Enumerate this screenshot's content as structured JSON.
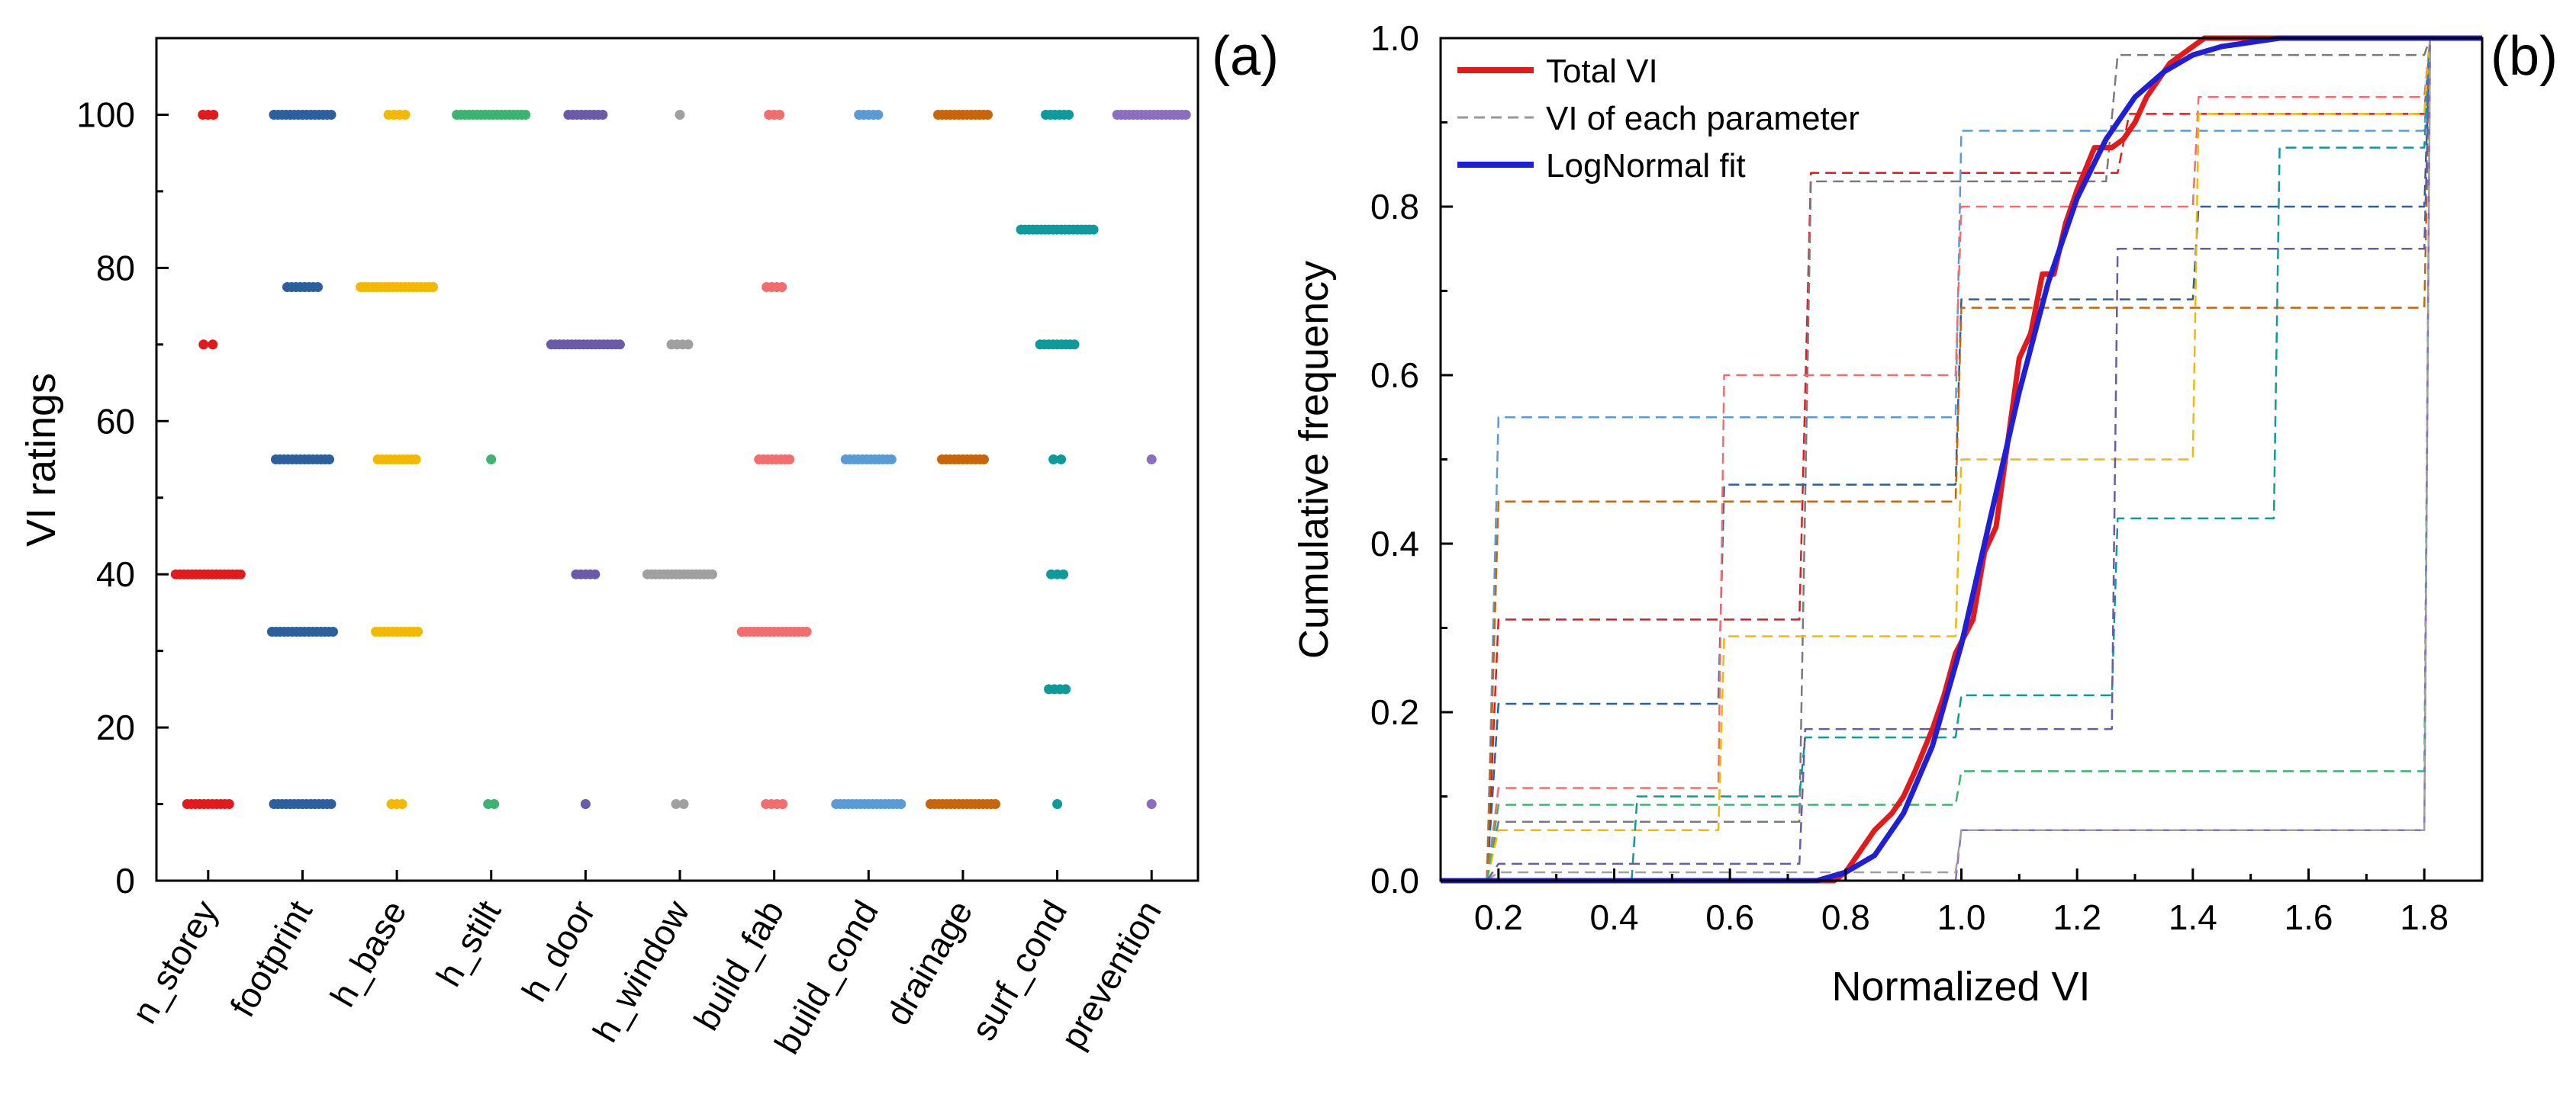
{
  "chart_data": [
    {
      "type": "scatter",
      "panel_label": "(a)",
      "ylabel": "VI ratings",
      "xlabel": "",
      "ylim": [
        0,
        110
      ],
      "yticks": [
        "0",
        "20",
        "40",
        "60",
        "80",
        "100"
      ],
      "categories": [
        "n_storey",
        "footprint",
        "h_base",
        "h_stilt",
        "h_door",
        "h_window",
        "build_fab",
        "build_cond",
        "drainage",
        "surf_cond",
        "prevention"
      ],
      "points": [
        {
          "category": "n_storey",
          "values": [
            10,
            40,
            70,
            100
          ],
          "color": "#e31a1c"
        },
        {
          "category": "footprint",
          "values": [
            10,
            32.5,
            55,
            77.5,
            100
          ],
          "color": "#2c5f9e"
        },
        {
          "category": "h_base",
          "values": [
            10,
            32.5,
            55,
            77.5,
            100
          ],
          "color": "#f5b800"
        },
        {
          "category": "h_stilt",
          "values": [
            10,
            55,
            100
          ],
          "color": "#3cb371"
        },
        {
          "category": "h_door",
          "values": [
            10,
            40,
            70,
            100
          ],
          "color": "#6a5aa8"
        },
        {
          "category": "h_window",
          "values": [
            10,
            40,
            70,
            100
          ],
          "color": "#a0a0a0"
        },
        {
          "category": "build_fab",
          "values": [
            10,
            32.5,
            55,
            77.5,
            100
          ],
          "color": "#f26d6d"
        },
        {
          "category": "build_cond",
          "values": [
            10,
            55,
            100
          ],
          "color": "#5b9bd5"
        },
        {
          "category": "drainage",
          "values": [
            10,
            55,
            100
          ],
          "color": "#c8640a"
        },
        {
          "category": "surf_cond",
          "values": [
            10,
            25,
            40,
            55,
            70,
            85,
            100
          ],
          "color": "#0e9a9a"
        },
        {
          "category": "prevention",
          "values": [
            10,
            55,
            100
          ],
          "color": "#8a6ec0"
        }
      ]
    },
    {
      "type": "line",
      "panel_label": "(b)",
      "xlabel": "Normalized VI",
      "ylabel": "Cumulative frequency",
      "xlim": [
        0.1,
        1.9
      ],
      "ylim": [
        0,
        1.0
      ],
      "xticks": [
        "0.2",
        "0.4",
        "0.6",
        "0.8",
        "1.0",
        "1.2",
        "1.4",
        "1.6",
        "1.8"
      ],
      "yticks": [
        "0.0",
        "0.2",
        "0.4",
        "0.6",
        "0.8",
        "1.0"
      ],
      "legend_position": "top-left",
      "legend": [
        {
          "label": "Total VI",
          "color": "#e31a1c",
          "style": "solid"
        },
        {
          "label": "VI of each parameter",
          "color": "#999999",
          "style": "dashed"
        },
        {
          "label": "LogNormal fit",
          "color": "#1f1fd6",
          "style": "solid"
        }
      ],
      "series": [
        {
          "color": "#e31a1c",
          "style": "solid",
          "points": [
            [
              0.1,
              0
            ],
            [
              0.78,
              0
            ],
            [
              0.8,
              0.01
            ],
            [
              0.82,
              0.03
            ],
            [
              0.85,
              0.06
            ],
            [
              0.88,
              0.08
            ],
            [
              0.9,
              0.1
            ],
            [
              0.92,
              0.13
            ],
            [
              0.95,
              0.18
            ],
            [
              0.97,
              0.22
            ],
            [
              0.99,
              0.27
            ],
            [
              1.02,
              0.31
            ],
            [
              1.04,
              0.39
            ],
            [
              1.06,
              0.42
            ],
            [
              1.08,
              0.52
            ],
            [
              1.1,
              0.62
            ],
            [
              1.12,
              0.65
            ],
            [
              1.14,
              0.72
            ],
            [
              1.16,
              0.72
            ],
            [
              1.18,
              0.78
            ],
            [
              1.2,
              0.82
            ],
            [
              1.23,
              0.87
            ],
            [
              1.26,
              0.87
            ],
            [
              1.28,
              0.88
            ],
            [
              1.3,
              0.9
            ],
            [
              1.32,
              0.93
            ],
            [
              1.34,
              0.95
            ],
            [
              1.36,
              0.97
            ],
            [
              1.4,
              0.99
            ],
            [
              1.42,
              1.0
            ],
            [
              1.9,
              1.0
            ]
          ]
        },
        {
          "color": "#1f1fd6",
          "style": "solid",
          "points": [
            [
              0.1,
              0
            ],
            [
              0.75,
              0
            ],
            [
              0.8,
              0.01
            ],
            [
              0.85,
              0.03
            ],
            [
              0.9,
              0.08
            ],
            [
              0.95,
              0.16
            ],
            [
              1.0,
              0.28
            ],
            [
              1.05,
              0.43
            ],
            [
              1.1,
              0.58
            ],
            [
              1.15,
              0.71
            ],
            [
              1.2,
              0.81
            ],
            [
              1.25,
              0.88
            ],
            [
              1.3,
              0.93
            ],
            [
              1.35,
              0.96
            ],
            [
              1.4,
              0.98
            ],
            [
              1.45,
              0.99
            ],
            [
              1.55,
              1.0
            ],
            [
              1.9,
              1.0
            ]
          ]
        },
        {
          "color": "#e31a1c",
          "style": "dashed",
          "points": [
            [
              0.18,
              0
            ],
            [
              0.2,
              0.31
            ],
            [
              0.72,
              0.31
            ],
            [
              0.74,
              0.84
            ],
            [
              1.27,
              0.84
            ],
            [
              1.29,
              0.91
            ],
            [
              1.8,
              0.91
            ],
            [
              1.81,
              1.0
            ],
            [
              1.9,
              1.0
            ]
          ]
        },
        {
          "color": "#7a7a7a",
          "style": "dashed",
          "points": [
            [
              0.18,
              0
            ],
            [
              0.2,
              0.07
            ],
            [
              0.72,
              0.07
            ],
            [
              0.74,
              0.83
            ],
            [
              1.25,
              0.83
            ],
            [
              1.27,
              0.98
            ],
            [
              1.8,
              0.98
            ],
            [
              1.81,
              1.0
            ]
          ]
        },
        {
          "color": "#5b9bd5",
          "style": "dashed",
          "points": [
            [
              0.18,
              0
            ],
            [
              0.2,
              0.55
            ],
            [
              0.99,
              0.55
            ],
            [
              1.0,
              0.89
            ],
            [
              1.8,
              0.89
            ],
            [
              1.81,
              1.0
            ]
          ]
        },
        {
          "color": "#2c5f9e",
          "style": "dashed",
          "points": [
            [
              0.18,
              0
            ],
            [
              0.2,
              0.21
            ],
            [
              0.58,
              0.21
            ],
            [
              0.59,
              0.47
            ],
            [
              0.99,
              0.47
            ],
            [
              1.0,
              0.69
            ],
            [
              1.4,
              0.69
            ],
            [
              1.41,
              0.8
            ],
            [
              1.8,
              0.8
            ],
            [
              1.81,
              1.0
            ]
          ]
        },
        {
          "color": "#c8640a",
          "style": "dashed",
          "points": [
            [
              0.18,
              0
            ],
            [
              0.2,
              0.45
            ],
            [
              0.99,
              0.45
            ],
            [
              1.0,
              0.68
            ],
            [
              1.8,
              0.68
            ],
            [
              1.81,
              1.0
            ]
          ]
        },
        {
          "color": "#f26d6d",
          "style": "dashed",
          "points": [
            [
              0.18,
              0
            ],
            [
              0.2,
              0.11
            ],
            [
              0.58,
              0.11
            ],
            [
              0.59,
              0.6
            ],
            [
              0.99,
              0.6
            ],
            [
              1.0,
              0.8
            ],
            [
              1.4,
              0.8
            ],
            [
              1.41,
              0.93
            ],
            [
              1.8,
              0.93
            ],
            [
              1.81,
              1.0
            ]
          ]
        },
        {
          "color": "#f5b800",
          "style": "dashed",
          "points": [
            [
              0.18,
              0
            ],
            [
              0.2,
              0.06
            ],
            [
              0.58,
              0.06
            ],
            [
              0.59,
              0.29
            ],
            [
              0.99,
              0.29
            ],
            [
              1.0,
              0.5
            ],
            [
              1.4,
              0.5
            ],
            [
              1.41,
              0.91
            ],
            [
              1.8,
              0.91
            ],
            [
              1.81,
              1.0
            ]
          ]
        },
        {
          "color": "#0e9a9a",
          "style": "dashed",
          "points": [
            [
              0.43,
              0
            ],
            [
              0.44,
              0.1
            ],
            [
              0.72,
              0.1
            ],
            [
              0.73,
              0.17
            ],
            [
              0.99,
              0.17
            ],
            [
              1.0,
              0.22
            ],
            [
              1.26,
              0.22
            ],
            [
              1.27,
              0.43
            ],
            [
              1.54,
              0.43
            ],
            [
              1.55,
              0.87
            ],
            [
              1.8,
              0.87
            ],
            [
              1.81,
              1.0
            ]
          ]
        },
        {
          "color": "#3cb371",
          "style": "dashed",
          "points": [
            [
              0.18,
              0
            ],
            [
              0.2,
              0.09
            ],
            [
              0.99,
              0.09
            ],
            [
              1.0,
              0.13
            ],
            [
              1.8,
              0.13
            ],
            [
              1.81,
              1.0
            ]
          ]
        },
        {
          "color": "#6a5aa8",
          "style": "dashed",
          "points": [
            [
              0.18,
              0
            ],
            [
              0.2,
              0.02
            ],
            [
              0.72,
              0.02
            ],
            [
              0.73,
              0.18
            ],
            [
              1.26,
              0.18
            ],
            [
              1.27,
              0.75
            ],
            [
              1.8,
              0.75
            ],
            [
              1.81,
              1.0
            ]
          ]
        },
        {
          "color": "#8a6ec0",
          "style": "dashed",
          "points": [
            [
              0.99,
              0
            ],
            [
              1.0,
              0.06
            ],
            [
              1.8,
              0.06
            ],
            [
              1.81,
              1.0
            ]
          ]
        },
        {
          "color": "#a0a0a0",
          "style": "dashed",
          "points": [
            [
              0.18,
              0
            ],
            [
              0.2,
              0.01
            ],
            [
              0.99,
              0.01
            ],
            [
              1.0,
              0.06
            ],
            [
              1.8,
              0.06
            ],
            [
              1.81,
              1.0
            ]
          ]
        }
      ]
    }
  ]
}
